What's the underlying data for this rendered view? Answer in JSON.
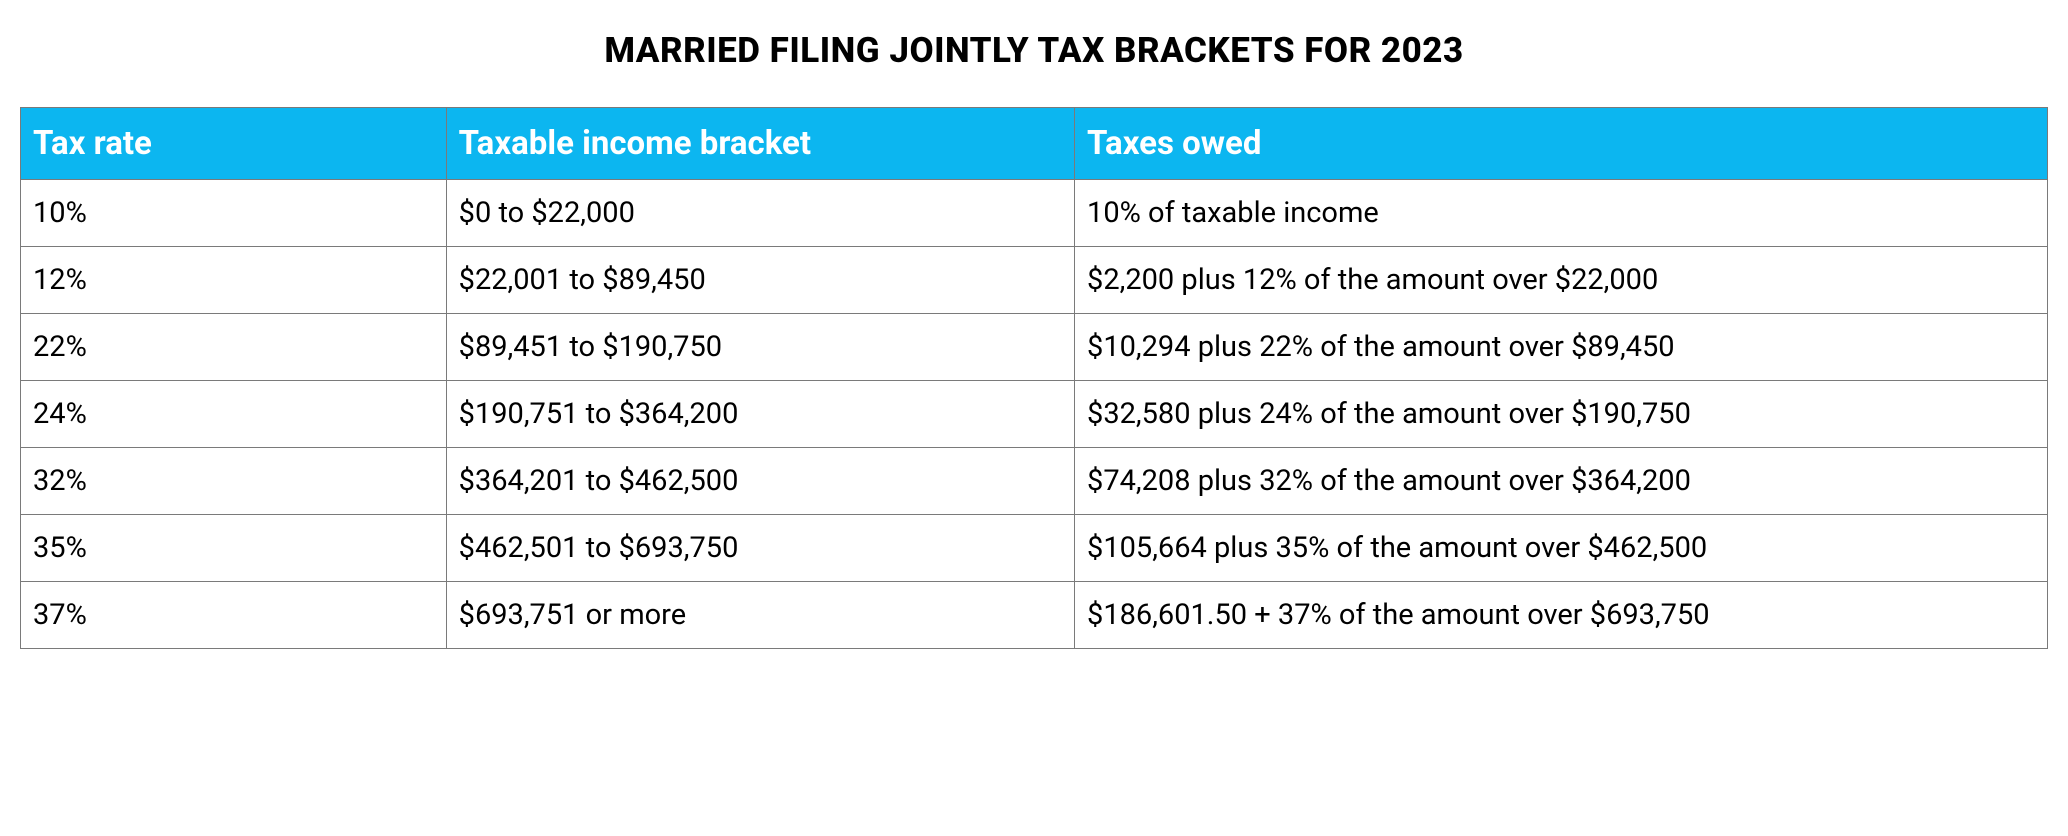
{
  "title": "MARRIED FILING JOINTLY TAX BRACKETS FOR 2023",
  "table": {
    "type": "table",
    "header_background_color": "#0cb6f0",
    "header_text_color": "#ffffff",
    "border_color": "#7a7a7a",
    "top_border_color": "#000000",
    "background_color": "#ffffff",
    "title_fontsize": 35,
    "header_fontsize": 33,
    "cell_fontsize": 29,
    "columns": [
      {
        "key": "rate",
        "label": "Tax rate",
        "width_pct": 21
      },
      {
        "key": "bracket",
        "label": "Taxable income bracket",
        "width_pct": 31
      },
      {
        "key": "owed",
        "label": "Taxes owed",
        "width_pct": 48
      }
    ],
    "rows": [
      {
        "rate": "10%",
        "bracket": "$0 to $22,000",
        "owed": "10% of taxable income"
      },
      {
        "rate": "12%",
        "bracket": "$22,001 to $89,450",
        "owed": "$2,200 plus 12% of the amount over $22,000"
      },
      {
        "rate": "22%",
        "bracket": "$89,451 to $190,750",
        "owed": "$10,294 plus 22% of the amount over $89,450"
      },
      {
        "rate": "24%",
        "bracket": "$190,751 to $364,200",
        "owed": "$32,580 plus 24% of the amount over $190,750"
      },
      {
        "rate": "32%",
        "bracket": "$364,201 to $462,500",
        "owed": "$74,208 plus 32% of the amount over $364,200"
      },
      {
        "rate": "35%",
        "bracket": "$462,501 to $693,750",
        "owed": "$105,664 plus 35% of the amount over $462,500"
      },
      {
        "rate": "37%",
        "bracket": "$693,751 or more",
        "owed": "$186,601.50 + 37% of the amount over $693,750"
      }
    ]
  }
}
